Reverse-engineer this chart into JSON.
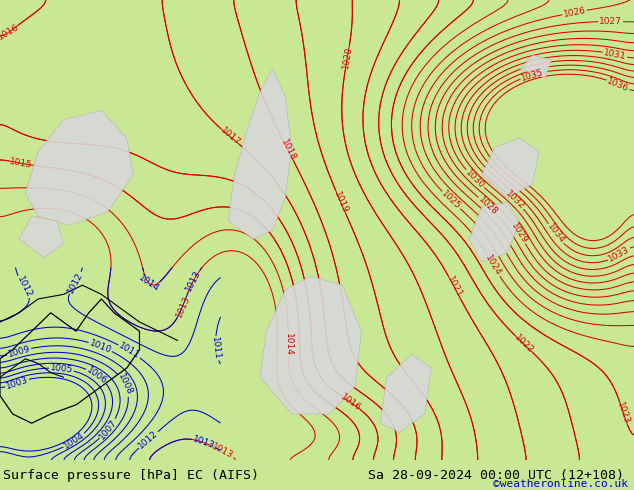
{
  "title_left": "Surface pressure [hPa] EC (AIFS)",
  "title_right": "Sa 28-09-2024 00:00 UTC (12+108)",
  "watermark": "©weatheronline.co.uk",
  "bg_color": "#c8e896",
  "footer_bg": "#c8e896",
  "contour_color_red": "#dd0000",
  "contour_color_blue": "#0000cc",
  "contour_color_black": "#000000",
  "highland_color": "#d8d8d8",
  "highland_edge": "#b0b0b0",
  "title_fontsize": 9.5,
  "watermark_fontsize": 8,
  "watermark_color": "#0000cc",
  "label_fontsize": 6.5
}
